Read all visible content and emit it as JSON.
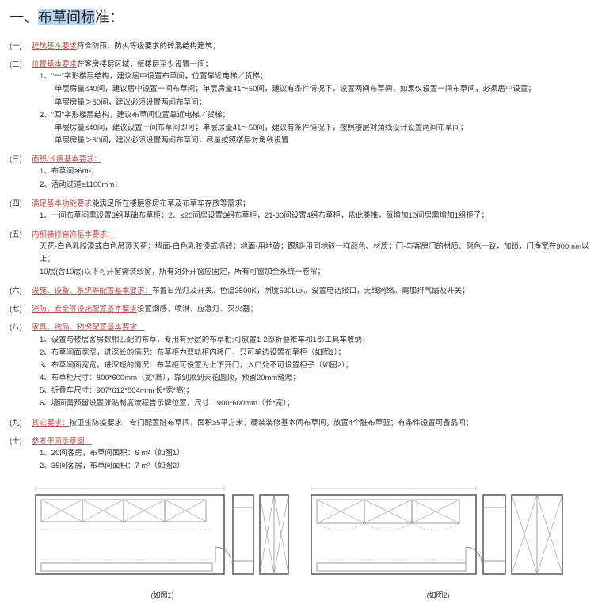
{
  "colors": {
    "heading": "#c0504d",
    "highlight_bg": "#b5d4f0",
    "text": "#333333",
    "figure_stroke": "#777777"
  },
  "title_prefix": "一、",
  "title_highlight": "布草间标",
  "title_suffix": "准：",
  "items": [
    {
      "num": "(一)",
      "head": "建筑基本要求",
      "tail": "符合防雨、防火等级要求的砖混结构建筑；",
      "subs": []
    },
    {
      "num": "(二)",
      "head": "位置基本要求",
      "tail": "在客房楼层区域，每楼层至少设置一间；",
      "subs": [
        "1、\"一\"字形楼层结构，建议居中设置布草间，位置靠近电梯／货梯；",
        "　　单层房量≤40间，建议居中设置一间布草间；单层房量41～50间，建议有条件情况下，设置两间布草间，如果仅设置一间布草间，必须居中设置；",
        "　　单层房量＞50间，建议必须设置两间布草间；",
        "2、\"回\"字形楼层结构，建议布草间位置靠近电梯／货梯；",
        "　　单层房量≤40间，建议设置一间布草间即可；单层房量41～50间，建议有条件情况下，按照楼层对角线设计设置两间布草间；",
        "　　单层房量＞50间，建议必须设置两间布草间，尽量按照楼层对角线设置"
      ]
    },
    {
      "num": "(三)",
      "head": "面积/长度基本要求：",
      "tail": "",
      "subs": [
        "1、布草间≥6m²；",
        "2、活动过道≥1100mm；"
      ]
    },
    {
      "num": "(四)",
      "head": "满足基本功能要求",
      "tail": "能满足所在楼层客房布草及布草车存放等需求；",
      "subs": [
        "1、一间布草间需设置3组基础布草柜；2、≤20间房设置3组布草柜，21-30间设置4组布草柜，依此类推，每增加10间房需增加1组柜子；"
      ]
    },
    {
      "num": "(五)",
      "head": "内部装修装饰基本要求：",
      "tail": "",
      "subs": [
        "天花-白色乳胶漆或白色吊顶天花；墙面-白色乳胶漆或墙砖；地面-用地砖；踢脚-用同地砖一样颜色、材质；门-与客房门的材质、颜色一致，加锁，门净宽在900mm以上；",
        "10层(含10层)以下可开窗需装纱窗，所有对外开窗应固定，所有可窗加全系统一卷帘；"
      ]
    },
    {
      "num": "(六)",
      "head": "设施、设备、系统等配置基本要求：",
      "tail": "布置日光灯及开关。色温3500K，照度530Lux。设置电话接口，无线网络。需加排气扇及开关；",
      "subs": []
    },
    {
      "num": "(七)",
      "head": "消防、安全等设施配置基本要求",
      "tail": "设置烟感、喷淋、应急灯、灭火器；",
      "subs": []
    },
    {
      "num": "(八)",
      "head": "家具、物品、物资配置基本要求：",
      "tail": "",
      "subs": [
        "1、设置与楼层客房数相匹配的布草，专用有分层的布草柜;可放置1-2部折叠推车和1部工具车收纳；",
        "2、布草间面宽窄，进深长的情况：布草柜为双轨柜内移门，只可单边设置布草柜（如图1）；",
        "3、布草间面宽宽，进深短的情况：布草柜可设置为上下开门，入口处不可设置柜子（如图2）；",
        "4、布草柜尺寸：800*600mm（宽*高），靠到顶到天花圆顶，预留20mm缝隙；",
        "5、折叠车尺寸：907*612*864mm(长*宽*高)；",
        "6、墙面需预留设置张贴制度流程告示牌位置，尺寸：900*600mm（长*宽）；"
      ]
    },
    {
      "num": "(九)",
      "head": "其它要求：",
      "tail": "按卫生防疫要求，专门配置脏布草间，面积≥5平方米，硬装装修基本同布草间，放置4个脏布草篮；有条件设置可备品间；",
      "subs": []
    },
    {
      "num": "(十)",
      "head": "参考平面示意图：",
      "tail": "",
      "subs": [
        "1、20间客房，布草间面积：6 m²（如图1）",
        "2、35间客房，布草间面积：7 m²（如图2）"
      ]
    }
  ],
  "figure1_caption": "(如图1)",
  "figure2_caption": "(如图2)"
}
